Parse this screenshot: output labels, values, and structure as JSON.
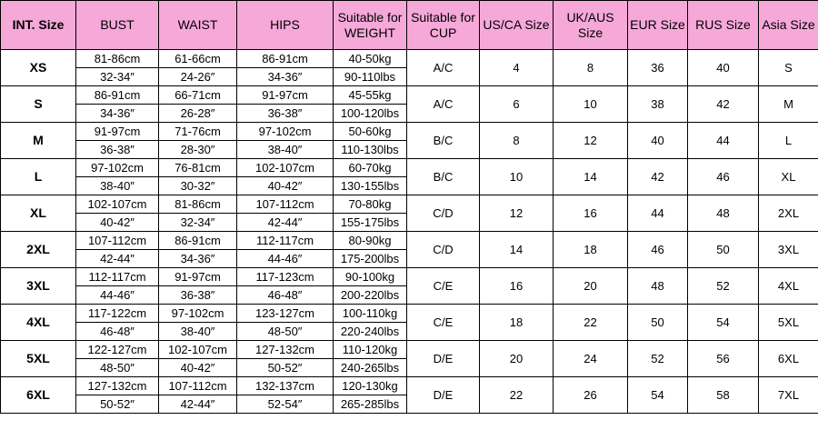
{
  "table": {
    "header": [
      "INT. Size",
      "BUST",
      "WAIST",
      "HIPS",
      "Suitable for WEIGHT",
      "Suitable for CUP",
      "US/CA Size",
      "UK/AUS Size",
      "EUR Size",
      "RUS Size",
      "Asia Size"
    ],
    "rows": [
      {
        "size": "XS",
        "bust": [
          "81-86cm",
          "32-34″"
        ],
        "waist": [
          "61-66cm",
          "24-26″"
        ],
        "hips": [
          "86-91cm",
          "34-36″"
        ],
        "weight": [
          "40-50kg",
          "90-110lbs"
        ],
        "cup": "A/C",
        "us": "4",
        "uk": "8",
        "eur": "36",
        "rus": "40",
        "asia": "S"
      },
      {
        "size": "S",
        "bust": [
          "86-91cm",
          "34-36″"
        ],
        "waist": [
          "66-71cm",
          "26-28″"
        ],
        "hips": [
          "91-97cm",
          "36-38″"
        ],
        "weight": [
          "45-55kg",
          "100-120lbs"
        ],
        "cup": "A/C",
        "us": "6",
        "uk": "10",
        "eur": "38",
        "rus": "42",
        "asia": "M"
      },
      {
        "size": "M",
        "bust": [
          "91-97cm",
          "36-38″"
        ],
        "waist": [
          "71-76cm",
          "28-30″"
        ],
        "hips": [
          "97-102cm",
          "38-40″"
        ],
        "weight": [
          "50-60kg",
          "110-130lbs"
        ],
        "cup": "B/C",
        "us": "8",
        "uk": "12",
        "eur": "40",
        "rus": "44",
        "asia": "L"
      },
      {
        "size": "L",
        "bust": [
          "97-102cm",
          "38-40″"
        ],
        "waist": [
          "76-81cm",
          "30-32″"
        ],
        "hips": [
          "102-107cm",
          "40-42″"
        ],
        "weight": [
          "60-70kg",
          "130-155lbs"
        ],
        "cup": "B/C",
        "us": "10",
        "uk": "14",
        "eur": "42",
        "rus": "46",
        "asia": "XL"
      },
      {
        "size": "XL",
        "bust": [
          "102-107cm",
          "40-42″"
        ],
        "waist": [
          "81-86cm",
          "32-34″"
        ],
        "hips": [
          "107-112cm",
          "42-44″"
        ],
        "weight": [
          "70-80kg",
          "155-175lbs"
        ],
        "cup": "C/D",
        "us": "12",
        "uk": "16",
        "eur": "44",
        "rus": "48",
        "asia": "2XL"
      },
      {
        "size": "2XL",
        "bust": [
          "107-112cm",
          "42-44″"
        ],
        "waist": [
          "86-91cm",
          "34-36″"
        ],
        "hips": [
          "112-117cm",
          "44-46″"
        ],
        "weight": [
          "80-90kg",
          "175-200lbs"
        ],
        "cup": "C/D",
        "us": "14",
        "uk": "18",
        "eur": "46",
        "rus": "50",
        "asia": "3XL"
      },
      {
        "size": "3XL",
        "bust": [
          "112-117cm",
          "44-46″"
        ],
        "waist": [
          "91-97cm",
          "36-38″"
        ],
        "hips": [
          "117-123cm",
          "46-48″"
        ],
        "weight": [
          "90-100kg",
          "200-220lbs"
        ],
        "cup": "C/E",
        "us": "16",
        "uk": "20",
        "eur": "48",
        "rus": "52",
        "asia": "4XL"
      },
      {
        "size": "4XL",
        "bust": [
          "117-122cm",
          "46-48″"
        ],
        "waist": [
          "97-102cm",
          "38-40″"
        ],
        "hips": [
          "123-127cm",
          "48-50″"
        ],
        "weight": [
          "100-110kg",
          "220-240lbs"
        ],
        "cup": "C/E",
        "us": "18",
        "uk": "22",
        "eur": "50",
        "rus": "54",
        "asia": "5XL"
      },
      {
        "size": "5XL",
        "bust": [
          "122-127cm",
          "48-50″"
        ],
        "waist": [
          "102-107cm",
          "40-42″"
        ],
        "hips": [
          "127-132cm",
          "50-52″"
        ],
        "weight": [
          "110-120kg",
          "240-265lbs"
        ],
        "cup": "D/E",
        "us": "20",
        "uk": "24",
        "eur": "52",
        "rus": "56",
        "asia": "6XL"
      },
      {
        "size": "6XL",
        "bust": [
          "127-132cm",
          "50-52″"
        ],
        "waist": [
          "107-112cm",
          "42-44″"
        ],
        "hips": [
          "132-137cm",
          "52-54″"
        ],
        "weight": [
          "120-130kg",
          "265-285lbs"
        ],
        "cup": "D/E",
        "us": "22",
        "uk": "26",
        "eur": "54",
        "rus": "58",
        "asia": "7XL"
      }
    ]
  }
}
